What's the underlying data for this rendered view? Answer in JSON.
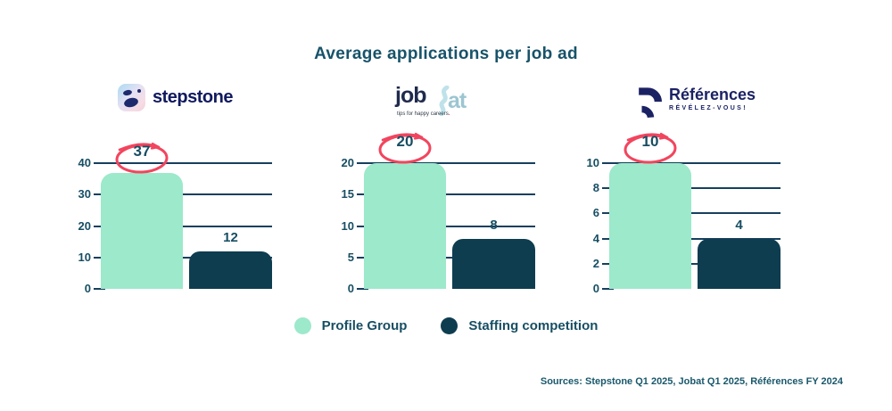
{
  "title": "Average applications per job ad",
  "colors": {
    "mint": "#9CE9CB",
    "dark_teal": "#0E3D50",
    "text_teal": "#174E63",
    "gridline": "#173F5E",
    "annotation_red": "#F2455E"
  },
  "logos": {
    "stepstone": {
      "wordmark": "stepstone"
    },
    "jobat": {
      "word_job": "job",
      "word_at": "at",
      "tagline": "tips for happy careers",
      "tagline_dot": "."
    },
    "references": {
      "wordmark": "Références",
      "tagline": "RÉVÉLEZ-VOUS!"
    }
  },
  "legend": [
    {
      "label": "Profile Group",
      "color": "#9CE9CB"
    },
    {
      "label": "Staffing competition",
      "color": "#0E3D50"
    }
  ],
  "sources": "Sources: Stepstone Q1 2025, Jobat Q1 2025, Références FY 2024",
  "chart_data": [
    {
      "type": "bar",
      "platform": "Stepstone",
      "categories": [
        "Profile Group",
        "Staffing competition"
      ],
      "values": [
        37,
        12
      ],
      "circled_value": 37,
      "ymax": 40,
      "yticks": [
        0,
        10,
        20,
        30,
        40
      ],
      "grid": true,
      "legend_position": "bottom"
    },
    {
      "type": "bar",
      "platform": "Jobat",
      "categories": [
        "Profile Group",
        "Staffing competition"
      ],
      "values": [
        20,
        8
      ],
      "circled_value": 20,
      "ymax": 20,
      "yticks": [
        0,
        5,
        10,
        15,
        20
      ],
      "grid": true,
      "legend_position": "bottom"
    },
    {
      "type": "bar",
      "platform": "Références",
      "categories": [
        "Profile Group",
        "Staffing competition"
      ],
      "values": [
        10,
        4
      ],
      "circled_value": 10,
      "ymax": 10,
      "yticks": [
        0,
        2,
        4,
        6,
        8,
        10
      ],
      "grid": true,
      "legend_position": "bottom"
    }
  ]
}
